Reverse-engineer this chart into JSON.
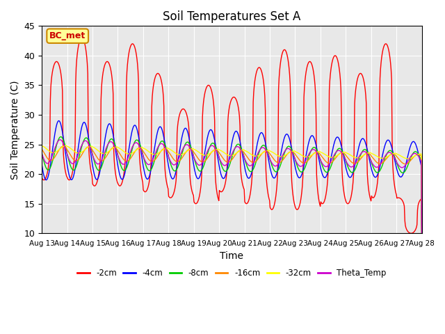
{
  "title": "Soil Temperatures Set A",
  "xlabel": "Time",
  "ylabel": "Soil Temperature (C)",
  "ylim": [
    10,
    45
  ],
  "yticks": [
    10,
    15,
    20,
    25,
    30,
    35,
    40,
    45
  ],
  "x_labels": [
    "Aug 13",
    "Aug 14",
    "Aug 15",
    "Aug 16",
    "Aug 17",
    "Aug 18",
    "Aug 19",
    "Aug 20",
    "Aug 21",
    "Aug 22",
    "Aug 23",
    "Aug 24",
    "Aug 25",
    "Aug 26",
    "Aug 27",
    "Aug 28"
  ],
  "series_colors": {
    "-2cm": "#ff0000",
    "-4cm": "#0000ff",
    "-8cm": "#00cc00",
    "-16cm": "#ff8800",
    "-32cm": "#ffff00",
    "Theta_Temp": "#cc00cc"
  },
  "series_labels": [
    "-2cm",
    "-4cm",
    "-8cm",
    "-16cm",
    "-32cm",
    "Theta_Temp"
  ],
  "annotation_text": "BC_met",
  "annotation_color": "#cc0000",
  "annotation_bg": "#ffff99",
  "background_color": "#e8e8e8",
  "n_days": 15,
  "points_per_day": 48
}
